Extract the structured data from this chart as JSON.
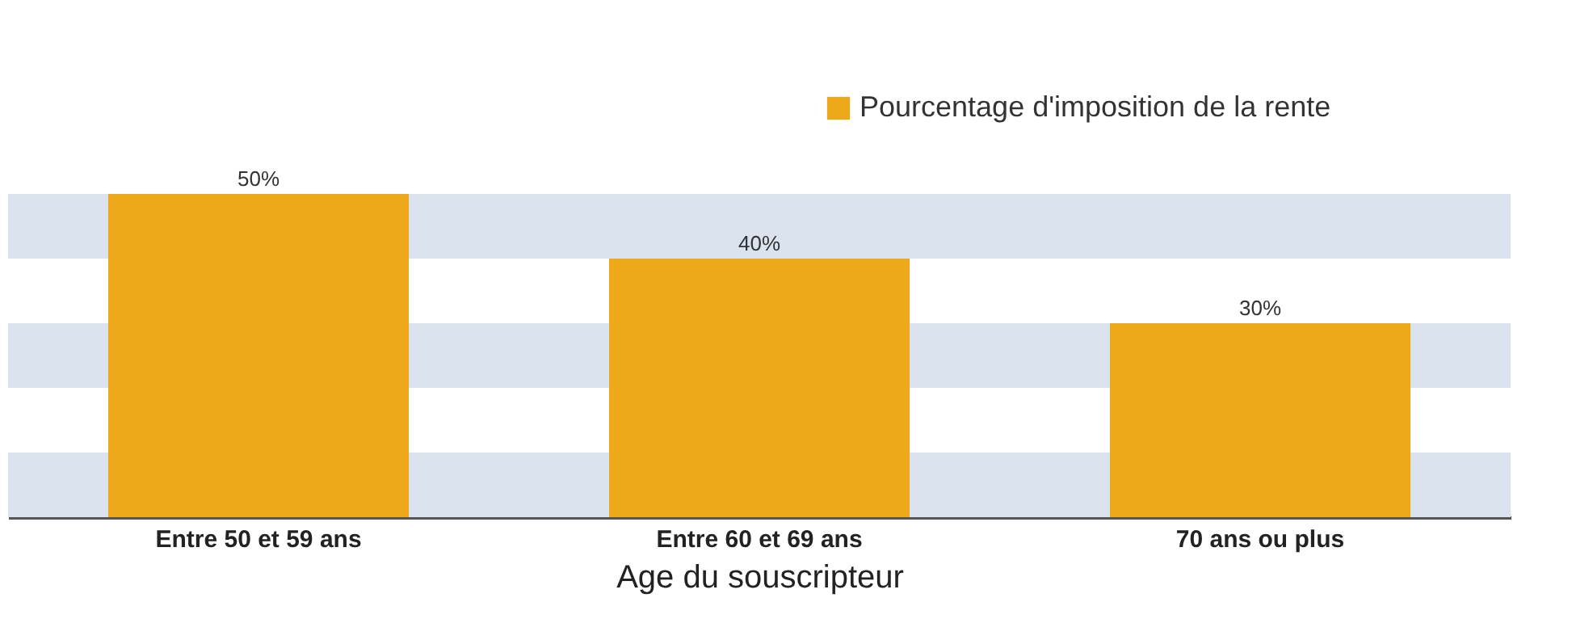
{
  "chart_data": {
    "type": "bar",
    "xlabel": "Age du souscripteur",
    "categories": [
      "Entre 50 et 59 ans",
      "Entre 60 et 69 ans",
      "70 ans ou plus"
    ],
    "series": [
      {
        "name": "Pourcentage d'imposition de la rente",
        "color": "#eea91b",
        "values": [
          50,
          40,
          30
        ],
        "value_labels": [
          "50%",
          "40%",
          "30%"
        ]
      }
    ],
    "bands": [
      {
        "axis": "y",
        "from": 0,
        "to": 10,
        "color": "#dbe3ee"
      },
      {
        "axis": "y",
        "from": 20,
        "to": 30,
        "color": "#dbe3ee"
      },
      {
        "axis": "y",
        "from": 40,
        "to": 50,
        "color": "#dbe3ee"
      }
    ],
    "tick_labels": "x",
    "grid": false,
    "legend": "top right"
  }
}
